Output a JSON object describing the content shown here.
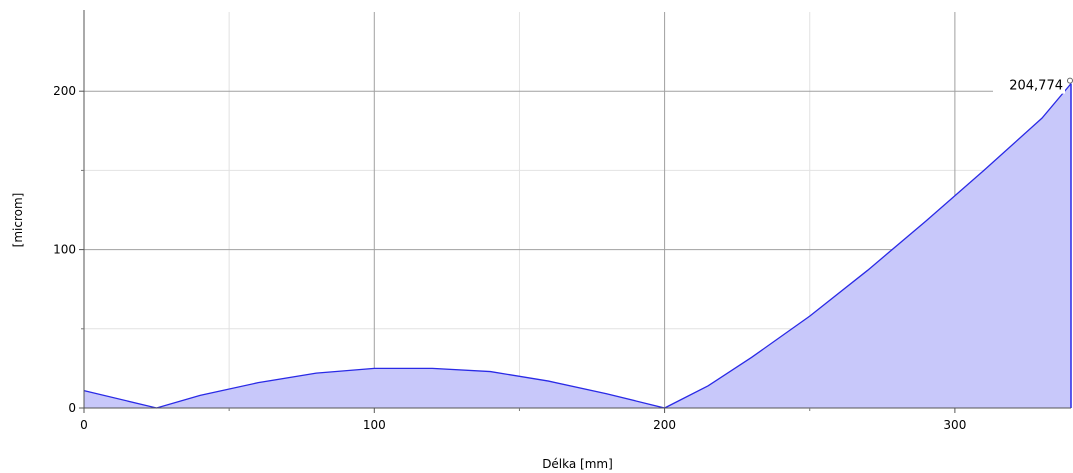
{
  "chart_data": {
    "type": "area",
    "title": "",
    "xlabel": "Délka [mm]",
    "ylabel": "[microm]",
    "xlim": [
      0,
      340
    ],
    "ylim": [
      0,
      250
    ],
    "x_ticks": [
      0,
      100,
      200,
      300
    ],
    "y_ticks": [
      0,
      100,
      200
    ],
    "x_minor_ticks": [
      50,
      150,
      250
    ],
    "y_minor_ticks": [
      50,
      150
    ],
    "grid": true,
    "series": [
      {
        "x": [
          0,
          25,
          40,
          60,
          80,
          100,
          120,
          140,
          160,
          180,
          200,
          215,
          230,
          250,
          270,
          290,
          310,
          330,
          340
        ],
        "y": [
          11,
          0,
          8,
          16,
          22,
          25,
          25,
          23,
          17,
          9,
          0,
          14,
          32,
          58,
          87,
          118,
          150,
          183,
          204.774
        ],
        "color": "#2a2ae6",
        "fill": "#c8c8fa"
      }
    ],
    "annotations": [
      {
        "x": 340,
        "y": 204.774,
        "text": "204,774"
      }
    ]
  }
}
